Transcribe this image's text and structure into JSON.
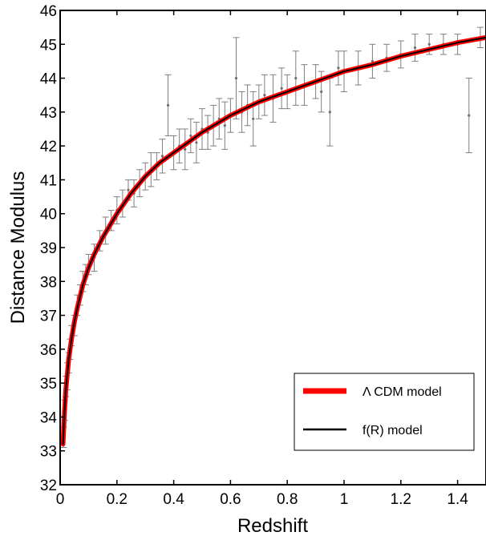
{
  "chart_data": {
    "type": "scatter",
    "title": "",
    "xlabel": "Redshift",
    "ylabel": "Distance Modulus",
    "xlim": [
      0,
      1.5
    ],
    "ylim": [
      32,
      46
    ],
    "xticks": [
      0,
      0.2,
      0.4,
      0.6,
      0.8,
      1,
      1.2,
      1.4
    ],
    "xtick_labels": [
      "0",
      "0.2",
      "0.4",
      "0.6",
      "0.8",
      "1",
      "1.2",
      "1.4"
    ],
    "yticks": [
      32,
      33,
      34,
      35,
      36,
      37,
      38,
      39,
      40,
      41,
      42,
      43,
      44,
      45,
      46
    ],
    "ytick_labels": [
      "32",
      "33",
      "34",
      "35",
      "36",
      "37",
      "38",
      "39",
      "40",
      "41",
      "42",
      "43",
      "44",
      "45",
      "46"
    ],
    "grid": false,
    "legend_position": "bottom-right",
    "legend": [
      {
        "label": "Λ CDM model",
        "color": "#ff0000"
      },
      {
        "label": "f(R) model",
        "color": "#000000"
      }
    ],
    "curves": [
      {
        "label": "Λ CDM model",
        "color": "#ff0000",
        "x": [
          0.01,
          0.015,
          0.02,
          0.03,
          0.04,
          0.05,
          0.06,
          0.08,
          0.1,
          0.12,
          0.15,
          0.2,
          0.25,
          0.3,
          0.35,
          0.4,
          0.45,
          0.5,
          0.6,
          0.7,
          0.8,
          0.9,
          1.0,
          1.1,
          1.2,
          1.3,
          1.4,
          1.5
        ],
        "y": [
          33.2,
          34.1,
          34.8,
          35.7,
          36.3,
          36.8,
          37.2,
          37.9,
          38.4,
          38.8,
          39.3,
          40.0,
          40.6,
          41.1,
          41.5,
          41.8,
          42.1,
          42.4,
          42.9,
          43.3,
          43.6,
          43.9,
          44.2,
          44.4,
          44.65,
          44.85,
          45.05,
          45.2
        ]
      },
      {
        "label": "f(R) model",
        "color": "#000000",
        "x": [
          0.01,
          0.015,
          0.02,
          0.03,
          0.04,
          0.05,
          0.06,
          0.08,
          0.1,
          0.12,
          0.15,
          0.2,
          0.25,
          0.3,
          0.35,
          0.4,
          0.45,
          0.5,
          0.6,
          0.7,
          0.8,
          0.9,
          1.0,
          1.1,
          1.2,
          1.3,
          1.4,
          1.5
        ],
        "y": [
          33.2,
          34.1,
          34.8,
          35.7,
          36.3,
          36.8,
          37.2,
          37.9,
          38.4,
          38.8,
          39.3,
          40.0,
          40.6,
          41.1,
          41.5,
          41.8,
          42.1,
          42.4,
          42.9,
          43.3,
          43.6,
          43.9,
          44.2,
          44.4,
          44.65,
          44.85,
          45.05,
          45.2
        ]
      }
    ],
    "points": [
      {
        "x": 0.012,
        "y": 33.4,
        "err": 0.3
      },
      {
        "x": 0.016,
        "y": 34.2,
        "err": 0.3
      },
      {
        "x": 0.02,
        "y": 34.9,
        "err": 0.3
      },
      {
        "x": 0.025,
        "y": 35.2,
        "err": 0.4
      },
      {
        "x": 0.03,
        "y": 35.6,
        "err": 0.3
      },
      {
        "x": 0.035,
        "y": 36.0,
        "err": 0.3
      },
      {
        "x": 0.04,
        "y": 36.4,
        "err": 0.3
      },
      {
        "x": 0.05,
        "y": 36.7,
        "err": 0.3
      },
      {
        "x": 0.06,
        "y": 37.3,
        "err": 0.3
      },
      {
        "x": 0.07,
        "y": 37.6,
        "err": 0.3
      },
      {
        "x": 0.08,
        "y": 38.0,
        "err": 0.3
      },
      {
        "x": 0.09,
        "y": 38.2,
        "err": 0.3
      },
      {
        "x": 0.1,
        "y": 38.5,
        "err": 0.3
      },
      {
        "x": 0.12,
        "y": 38.7,
        "err": 0.4
      },
      {
        "x": 0.14,
        "y": 39.2,
        "err": 0.3
      },
      {
        "x": 0.16,
        "y": 39.5,
        "err": 0.4
      },
      {
        "x": 0.18,
        "y": 39.8,
        "err": 0.3
      },
      {
        "x": 0.2,
        "y": 40.1,
        "err": 0.4
      },
      {
        "x": 0.22,
        "y": 40.3,
        "err": 0.4
      },
      {
        "x": 0.24,
        "y": 40.7,
        "err": 0.3
      },
      {
        "x": 0.26,
        "y": 40.6,
        "err": 0.4
      },
      {
        "x": 0.28,
        "y": 40.9,
        "err": 0.4
      },
      {
        "x": 0.3,
        "y": 41.1,
        "err": 0.4
      },
      {
        "x": 0.32,
        "y": 41.3,
        "err": 0.5
      },
      {
        "x": 0.34,
        "y": 41.4,
        "err": 0.4
      },
      {
        "x": 0.36,
        "y": 41.7,
        "err": 0.5
      },
      {
        "x": 0.38,
        "y": 43.2,
        "err": 0.9
      },
      {
        "x": 0.4,
        "y": 41.8,
        "err": 0.5
      },
      {
        "x": 0.42,
        "y": 42.0,
        "err": 0.5
      },
      {
        "x": 0.44,
        "y": 41.9,
        "err": 0.6
      },
      {
        "x": 0.46,
        "y": 42.3,
        "err": 0.5
      },
      {
        "x": 0.48,
        "y": 42.1,
        "err": 0.6
      },
      {
        "x": 0.5,
        "y": 42.5,
        "err": 0.6
      },
      {
        "x": 0.52,
        "y": 42.4,
        "err": 0.5
      },
      {
        "x": 0.54,
        "y": 42.6,
        "err": 0.6
      },
      {
        "x": 0.56,
        "y": 42.8,
        "err": 0.6
      },
      {
        "x": 0.58,
        "y": 42.6,
        "err": 0.7
      },
      {
        "x": 0.6,
        "y": 42.9,
        "err": 0.5
      },
      {
        "x": 0.62,
        "y": 44.0,
        "err": 1.2
      },
      {
        "x": 0.64,
        "y": 43.0,
        "err": 0.6
      },
      {
        "x": 0.66,
        "y": 43.2,
        "err": 0.6
      },
      {
        "x": 0.68,
        "y": 42.8,
        "err": 0.8
      },
      {
        "x": 0.7,
        "y": 43.3,
        "err": 0.5
      },
      {
        "x": 0.72,
        "y": 43.5,
        "err": 0.6
      },
      {
        "x": 0.75,
        "y": 43.4,
        "err": 0.7
      },
      {
        "x": 0.78,
        "y": 43.7,
        "err": 0.6
      },
      {
        "x": 0.8,
        "y": 43.6,
        "err": 0.5
      },
      {
        "x": 0.83,
        "y": 44.0,
        "err": 0.8
      },
      {
        "x": 0.86,
        "y": 43.8,
        "err": 0.6
      },
      {
        "x": 0.9,
        "y": 43.9,
        "err": 0.5
      },
      {
        "x": 0.92,
        "y": 43.6,
        "err": 0.6
      },
      {
        "x": 0.95,
        "y": 43.0,
        "err": 1.0
      },
      {
        "x": 0.98,
        "y": 44.3,
        "err": 0.5
      },
      {
        "x": 1.0,
        "y": 44.2,
        "err": 0.6
      },
      {
        "x": 1.05,
        "y": 44.3,
        "err": 0.5
      },
      {
        "x": 1.1,
        "y": 44.5,
        "err": 0.5
      },
      {
        "x": 1.15,
        "y": 44.6,
        "err": 0.4
      },
      {
        "x": 1.2,
        "y": 44.7,
        "err": 0.4
      },
      {
        "x": 1.25,
        "y": 44.9,
        "err": 0.4
      },
      {
        "x": 1.3,
        "y": 45.0,
        "err": 0.3
      },
      {
        "x": 1.35,
        "y": 45.0,
        "err": 0.3
      },
      {
        "x": 1.4,
        "y": 45.0,
        "err": 0.3
      },
      {
        "x": 1.44,
        "y": 42.9,
        "err": 1.1
      },
      {
        "x": 1.48,
        "y": 45.2,
        "err": 0.3
      }
    ]
  }
}
